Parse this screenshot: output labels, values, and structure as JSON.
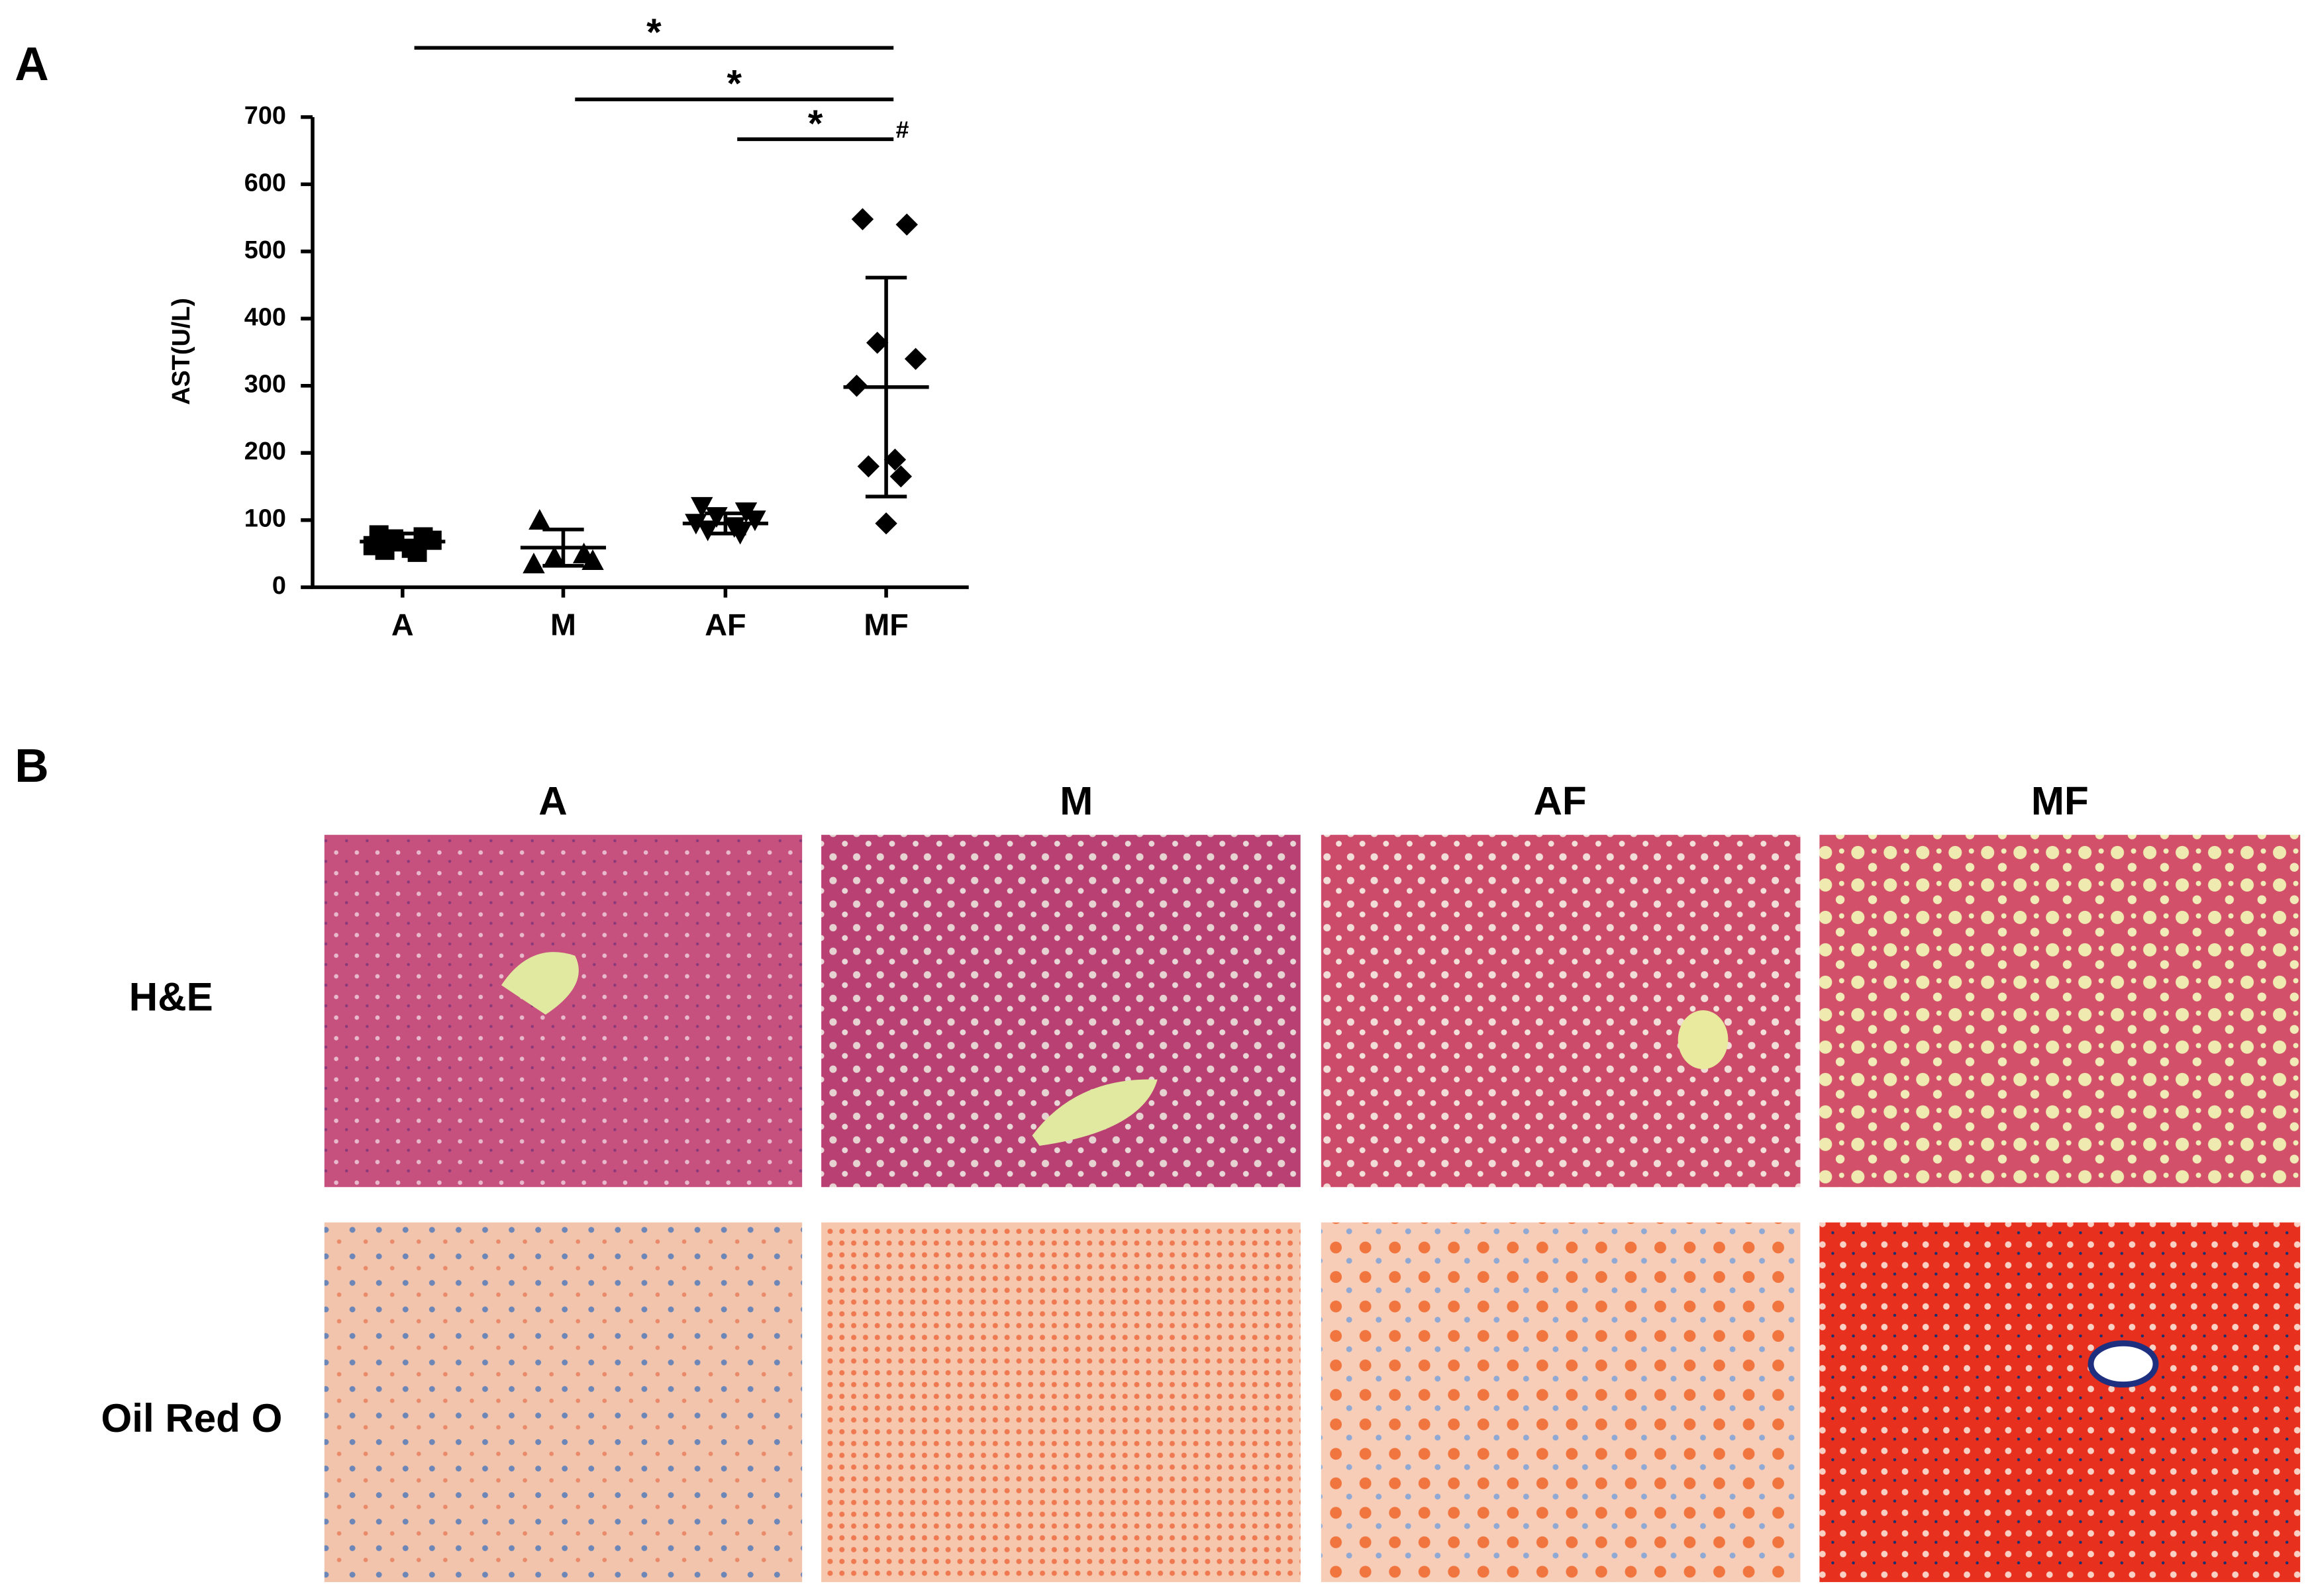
{
  "chart_data": {
    "type": "scatter",
    "panel_label": "A",
    "y_label": "AST(U/L)",
    "categories": [
      "A",
      "M",
      "AF",
      "MF"
    ],
    "markers": [
      "square",
      "triangle",
      "triangle-down",
      "diamond"
    ],
    "color": "#000000",
    "values": [
      [
        78,
        75,
        72,
        70,
        62,
        58,
        55,
        52
      ],
      [
        100,
        50,
        45,
        40,
        35
      ],
      [
        120,
        112,
        105,
        100,
        95,
        90,
        85,
        80
      ],
      [
        548,
        540,
        364,
        340,
        300,
        190,
        180,
        165,
        95
      ]
    ],
    "means": [
      68,
      59,
      95,
      298
    ],
    "sd": [
      12,
      27,
      15,
      163
    ],
    "ylim": [
      0,
      700
    ],
    "yticks": [
      0,
      100,
      200,
      300,
      400,
      500,
      600,
      700
    ],
    "annotations": [
      {
        "from": "A",
        "to": "MF",
        "label": "*"
      },
      {
        "from": "M",
        "to": "MF",
        "label": "*"
      },
      {
        "from": "AF",
        "to": "MF",
        "label": "*"
      }
    ],
    "point_annotation": {
      "category": "MF",
      "label": "#"
    }
  },
  "panel_b": {
    "panel_label": "B",
    "columns": [
      "A",
      "M",
      "AF",
      "MF"
    ],
    "rows": [
      "H&E",
      "Oil Red O"
    ]
  }
}
